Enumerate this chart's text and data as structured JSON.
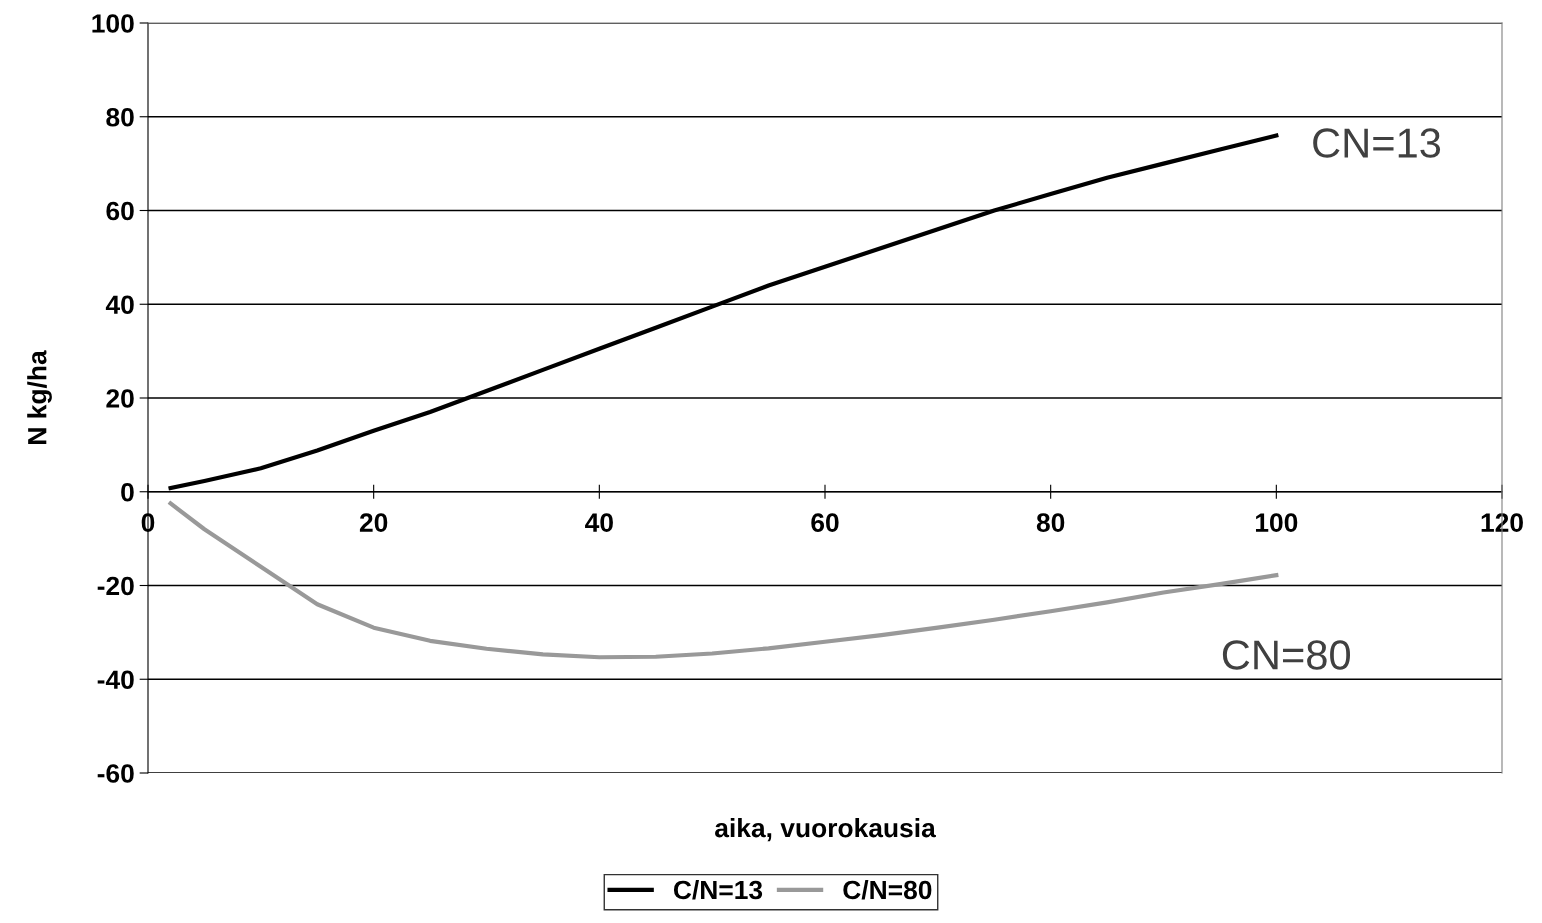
{
  "chart_data": {
    "type": "line",
    "xlabel": "aika, vuorokausia",
    "ylabel": "N kg/ha",
    "xlim": [
      0,
      120
    ],
    "xticks": [
      0,
      20,
      40,
      60,
      80,
      100,
      120
    ],
    "ylim": [
      -60,
      100
    ],
    "yticks": [
      -60,
      -40,
      -20,
      0,
      20,
      40,
      60,
      80,
      100
    ],
    "grid": "y",
    "legend": "bottom",
    "marker": "none",
    "line_style": "solid",
    "x": [
      2,
      5,
      10,
      15,
      20,
      25,
      30,
      35,
      40,
      45,
      50,
      55,
      60,
      65,
      70,
      75,
      80,
      85,
      90,
      95,
      100
    ],
    "series": [
      {
        "name": "C/N=13",
        "color": "#000000",
        "values": [
          0.8,
          2.3,
          5,
          8.8,
          13,
          17,
          21.5,
          26,
          30.5,
          35,
          39.5,
          44,
          48,
          52,
          56,
          60,
          63.5,
          67,
          70,
          73,
          76
        ]
      },
      {
        "name": "C/N=80",
        "color": "#999999",
        "values": [
          -2.5,
          -8,
          -16,
          -24,
          -29,
          -31.8,
          -33.5,
          -34.7,
          -35.3,
          -35.2,
          -34.5,
          -33.4,
          -32,
          -30.6,
          -29,
          -27.3,
          -25.5,
          -23.6,
          -21.5,
          -19.7,
          -17.8
        ]
      }
    ],
    "annotations": [
      "CN=13",
      "CN=80"
    ]
  }
}
